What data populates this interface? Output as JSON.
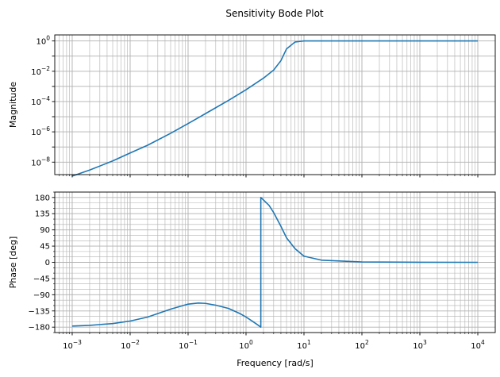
{
  "title": "Sensitivity Bode Plot",
  "colors": {
    "line": "#1f77b4",
    "grid": "#b0b0b0",
    "axes": "#000000",
    "background": "#ffffff"
  },
  "chart_data": [
    {
      "type": "line",
      "panel": "magnitude",
      "title": "Sensitivity Bode Plot",
      "xlabel": "",
      "ylabel": "Magnitude",
      "xscale": "log",
      "yscale": "log",
      "xlim": [
        0.0005,
        20000
      ],
      "ylim": [
        1.5e-09,
        2.5
      ],
      "grid": "major and minor",
      "ytick_labels": [
        "10^-8",
        "10^-6",
        "10^-4",
        "10^-2",
        "10^0"
      ],
      "x": [
        0.001,
        0.002,
        0.005,
        0.01,
        0.02,
        0.05,
        0.1,
        0.2,
        0.5,
        1,
        2,
        3,
        4,
        5,
        7,
        10,
        100,
        1000,
        10000
      ],
      "y": [
        1.2e-09,
        3e-09,
        1.2e-08,
        4e-08,
        1.3e-07,
        8e-07,
        3.5e-06,
        1.6e-05,
        0.00012,
        0.0006,
        0.0035,
        0.012,
        0.05,
        0.3,
        0.85,
        1.0,
        1.0,
        1.0,
        1.0
      ]
    },
    {
      "type": "line",
      "panel": "phase",
      "xlabel": "Frequency [rad/s]",
      "ylabel": "Phase [deg]",
      "xscale": "log",
      "yscale": "linear",
      "xlim": [
        0.0005,
        20000
      ],
      "ylim": [
        -195,
        195
      ],
      "grid": "major and minor",
      "xtick_labels": [
        "10^-3",
        "10^-2",
        "10^-1",
        "10^0",
        "10^1",
        "10^2",
        "10^3",
        "10^4"
      ],
      "ytick_labels": [
        "180",
        "135",
        "90",
        "45",
        "0",
        "−45",
        "−90",
        "−135",
        "−180"
      ],
      "x": [
        0.001,
        0.002,
        0.005,
        0.01,
        0.02,
        0.05,
        0.1,
        0.15,
        0.2,
        0.3,
        0.5,
        0.8,
        1.0,
        1.3,
        1.6,
        1.8,
        1.8,
        2,
        2.5,
        3,
        4,
        5,
        7,
        10,
        20,
        100,
        1000,
        10000
      ],
      "y": [
        -177,
        -175,
        -170,
        -163,
        -152,
        -130,
        -116,
        -113,
        -114,
        -119,
        -128,
        -143,
        -152,
        -164,
        -174,
        -180,
        180,
        173,
        158,
        138,
        100,
        68,
        38,
        17,
        6,
        1,
        0.2,
        0
      ]
    }
  ]
}
